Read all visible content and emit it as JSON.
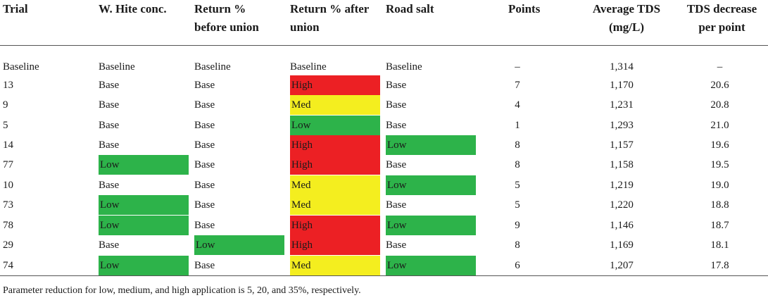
{
  "colors": {
    "high": "#ec2024",
    "med": "#f4ee1f",
    "low": "#2db34a"
  },
  "headers": [
    {
      "line1": "Trial",
      "line2": ""
    },
    {
      "line1": "W. Hite conc.",
      "line2": ""
    },
    {
      "line1": "Return %",
      "line2": "before union"
    },
    {
      "line1": "Return % after",
      "line2": "union"
    },
    {
      "line1": "Road salt",
      "line2": ""
    },
    {
      "line1": "Points",
      "line2": ""
    },
    {
      "line1": "Average TDS",
      "line2": "(mg/L)"
    },
    {
      "line1": "TDS decrease",
      "line2": "per point"
    }
  ],
  "rows": [
    {
      "trial": "Baseline",
      "whc": "Baseline",
      "rb": "Baseline",
      "ra": "Baseline",
      "rs": "Baseline",
      "points": "–",
      "tds": "1,314",
      "dec": "–"
    },
    {
      "trial": "13",
      "whc": "Base",
      "rb": "Base",
      "ra": "High",
      "rs": "Base",
      "points": "7",
      "tds": "1,170",
      "dec": "20.6"
    },
    {
      "trial": "9",
      "whc": "Base",
      "rb": "Base",
      "ra": "Med",
      "rs": "Base",
      "points": "4",
      "tds": "1,231",
      "dec": "20.8"
    },
    {
      "trial": "5",
      "whc": "Base",
      "rb": "Base",
      "ra": "Low",
      "rs": "Base",
      "points": "1",
      "tds": "1,293",
      "dec": "21.0"
    },
    {
      "trial": "14",
      "whc": "Base",
      "rb": "Base",
      "ra": "High",
      "rs": "Low",
      "points": "8",
      "tds": "1,157",
      "dec": "19.6"
    },
    {
      "trial": "77",
      "whc": "Low",
      "rb": "Base",
      "ra": "High",
      "rs": "Base",
      "points": "8",
      "tds": "1,158",
      "dec": "19.5"
    },
    {
      "trial": "10",
      "whc": "Base",
      "rb": "Base",
      "ra": "Med",
      "rs": "Low",
      "points": "5",
      "tds": "1,219",
      "dec": "19.0"
    },
    {
      "trial": "73",
      "whc": "Low",
      "rb": "Base",
      "ra": "Med",
      "rs": "Base",
      "points": "5",
      "tds": "1,220",
      "dec": "18.8"
    },
    {
      "trial": "78",
      "whc": "Low",
      "rb": "Base",
      "ra": "High",
      "rs": "Low",
      "points": "9",
      "tds": "1,146",
      "dec": "18.7"
    },
    {
      "trial": "29",
      "whc": "Base",
      "rb": "Low",
      "ra": "High",
      "rs": "Base",
      "points": "8",
      "tds": "1,169",
      "dec": "18.1"
    },
    {
      "trial": "74",
      "whc": "Low",
      "rb": "Base",
      "ra": "Med",
      "rs": "Low",
      "points": "6",
      "tds": "1,207",
      "dec": "17.8"
    }
  ],
  "footnote": "Parameter reduction for low, medium, and high application is 5, 20, and 35%, respectively."
}
